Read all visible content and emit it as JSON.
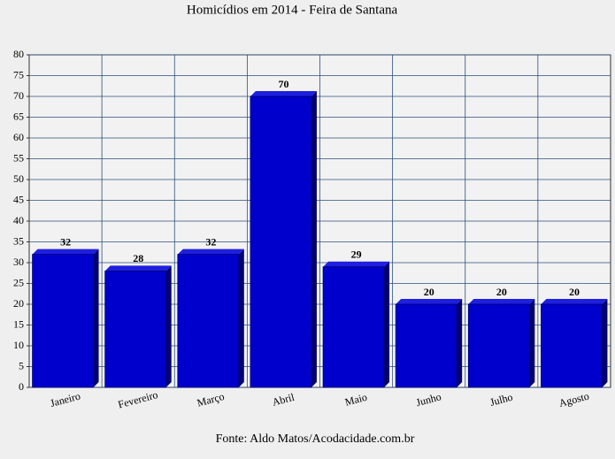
{
  "chart_data": {
    "type": "bar3d",
    "title": "Homicídios em 2014 - Feira de Santana",
    "footer": "Fonte: Aldo Matos/Acodacidade.com.br",
    "categories": [
      "Janeiro",
      "Fevereiro",
      "Março",
      "Abril",
      "Maio",
      "Junho",
      "Julho",
      "Agosto"
    ],
    "values": [
      32,
      28,
      32,
      70,
      29,
      20,
      20,
      20
    ],
    "color": "#0000cc",
    "ylim": [
      0,
      80
    ],
    "yticks": [
      0,
      5,
      10,
      15,
      20,
      25,
      30,
      35,
      40,
      45,
      50,
      55,
      60,
      65,
      70,
      75,
      80
    ],
    "grid": true
  }
}
